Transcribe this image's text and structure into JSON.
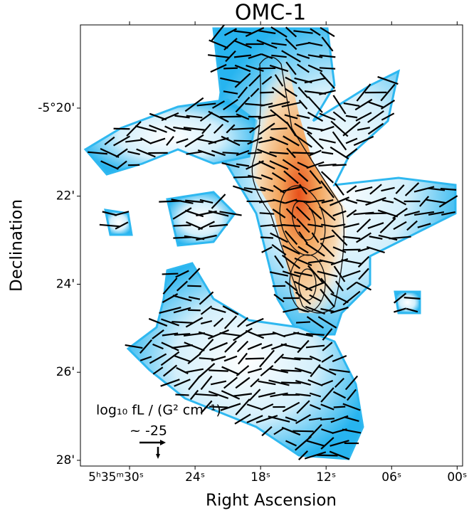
{
  "chart_data": {
    "type": "map",
    "title": "OMC-1",
    "x_label": "Right Ascension",
    "y_label": "Declination",
    "xlim": [
      34.5,
      -0.5
    ],
    "ylim": [
      28.13,
      18.11
    ],
    "xticks": [
      {
        "value": 30,
        "label": "5ʰ35ᵐ30ˢ"
      },
      {
        "value": 24,
        "label": "24ˢ"
      },
      {
        "value": 18,
        "label": "18ˢ"
      },
      {
        "value": 12,
        "label": "12ˢ"
      },
      {
        "value": 6,
        "label": "06ˢ"
      },
      {
        "value": 0,
        "label": "00ˢ"
      }
    ],
    "yticks": [
      {
        "value": 20,
        "label": "-5°20'"
      },
      {
        "value": 22,
        "label": "22'"
      },
      {
        "value": 24,
        "label": "24'"
      },
      {
        "value": 26,
        "label": "26'"
      },
      {
        "value": 28,
        "label": "28'"
      }
    ],
    "annotations": [
      "log₁₀ fL / (G² cm⁻¹)",
      "~  -25"
    ]
  }
}
